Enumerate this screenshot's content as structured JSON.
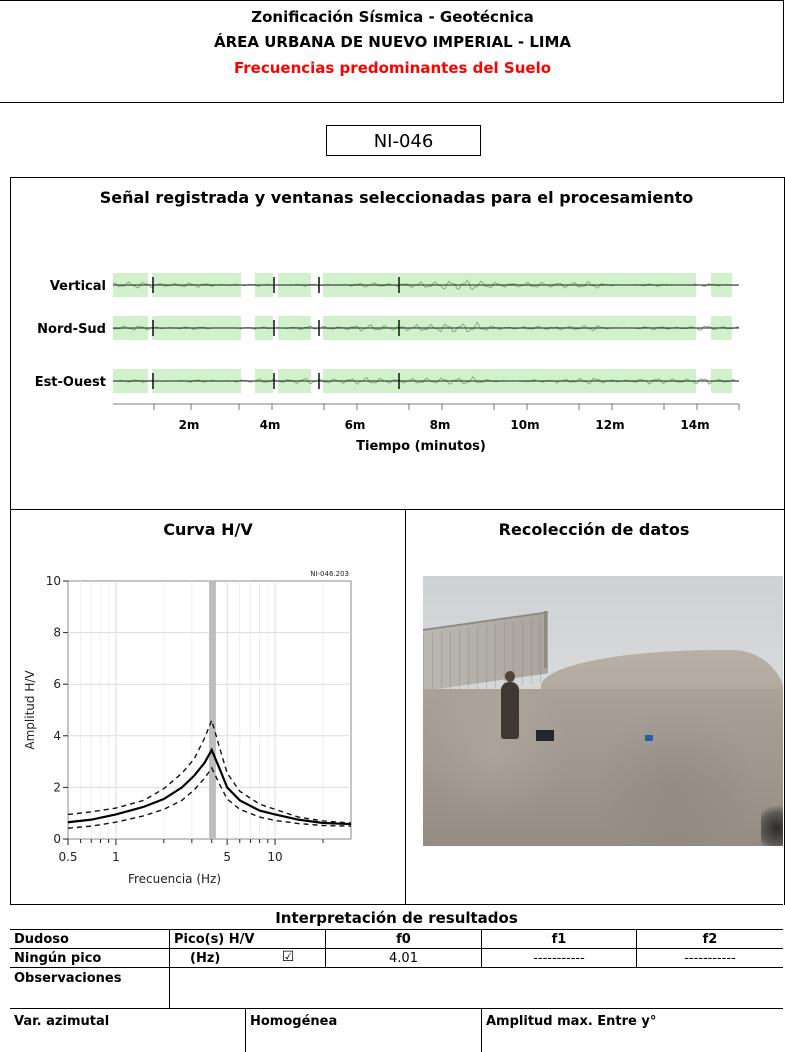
{
  "header": {
    "title1": "Zonificación Sísmica - Geotécnica",
    "title2": "ÁREA URBANA DE NUEVO IMPERIAL - LIMA",
    "title3": "Frecuencias predominantes del Suelo"
  },
  "station_code": "NI-046",
  "signal_section": {
    "title": "Señal registrada y ventanas seleccionadas para el procesamiento",
    "channels": [
      "Vertical",
      "Nord-Sud",
      "Est-Ouest"
    ],
    "axis_label": "Tiempo (minutos)",
    "ticks": [
      "2m",
      "4m",
      "6m",
      "8m",
      "10m",
      "12m",
      "14m"
    ]
  },
  "hv_section": {
    "title": "Curva H/V",
    "file_label": "NI-046.203",
    "y_axis_label": "Amplitud H/V",
    "x_axis_label": "Frecuencia (Hz)",
    "y_ticks": [
      "0",
      "2",
      "4",
      "6",
      "8",
      "10"
    ],
    "x_ticks": [
      "0.5",
      "1",
      "5",
      "10"
    ]
  },
  "photo_section": {
    "title": "Recolección de datos"
  },
  "results": {
    "title": "Interpretación de resultados",
    "dudoso": "Dudoso",
    "pico_hv": "Pico(s) H/V",
    "ningun_pico": "Ningún pico",
    "hz": "(Hz)",
    "checkmark": "☑",
    "f0_header": "f0",
    "f1_header": "f1",
    "f2_header": "f2",
    "f0_value": "4.01",
    "f1_value": "-----------",
    "f2_value": "-----------",
    "observaciones": "Observaciones",
    "var_azimutal": "Var. azimutal",
    "homogenea": "Homogénea",
    "amplitud_max": "Amplitud max. Entre y°"
  },
  "chart_data": [
    {
      "type": "line",
      "title": "Curva H/V",
      "xlabel": "Frecuencia (Hz)",
      "ylabel": "Amplitud H/V",
      "xscale": "log",
      "xlim": [
        0.5,
        30
      ],
      "ylim": [
        0,
        10
      ],
      "peak_frequency": 4.01,
      "series": [
        {
          "values": [
            [
              0.5,
              0.65
            ],
            [
              0.7,
              0.75
            ],
            [
              1.0,
              0.95
            ],
            [
              1.5,
              1.25
            ],
            [
              2.0,
              1.55
            ],
            [
              2.6,
              2.0
            ],
            [
              3.1,
              2.45
            ],
            [
              3.6,
              2.95
            ],
            [
              4.0,
              3.45
            ],
            [
              4.5,
              2.7
            ],
            [
              5.0,
              2.0
            ],
            [
              6.0,
              1.5
            ],
            [
              8.0,
              1.1
            ],
            [
              10.0,
              0.95
            ],
            [
              14.0,
              0.75
            ],
            [
              20.0,
              0.62
            ],
            [
              30.0,
              0.58
            ]
          ]
        },
        {
          "values": [
            [
              0.5,
              0.95
            ],
            [
              0.7,
              1.05
            ],
            [
              1.0,
              1.2
            ],
            [
              1.5,
              1.5
            ],
            [
              2.0,
              1.95
            ],
            [
              2.6,
              2.55
            ],
            [
              3.1,
              3.1
            ],
            [
              3.6,
              3.9
            ],
            [
              4.0,
              4.6
            ],
            [
              4.5,
              3.5
            ],
            [
              5.0,
              2.55
            ],
            [
              6.0,
              1.85
            ],
            [
              8.0,
              1.35
            ],
            [
              10.0,
              1.15
            ],
            [
              14.0,
              0.85
            ],
            [
              20.0,
              0.7
            ],
            [
              30.0,
              0.62
            ]
          ]
        },
        {
          "values": [
            [
              0.5,
              0.42
            ],
            [
              0.7,
              0.5
            ],
            [
              1.0,
              0.65
            ],
            [
              1.5,
              0.9
            ],
            [
              2.0,
              1.15
            ],
            [
              2.6,
              1.5
            ],
            [
              3.1,
              1.9
            ],
            [
              3.6,
              2.35
            ],
            [
              4.0,
              2.75
            ],
            [
              4.5,
              2.1
            ],
            [
              5.0,
              1.55
            ],
            [
              6.0,
              1.15
            ],
            [
              8.0,
              0.85
            ],
            [
              10.0,
              0.72
            ],
            [
              14.0,
              0.6
            ],
            [
              20.0,
              0.52
            ],
            [
              30.0,
              0.5
            ]
          ]
        }
      ]
    }
  ]
}
